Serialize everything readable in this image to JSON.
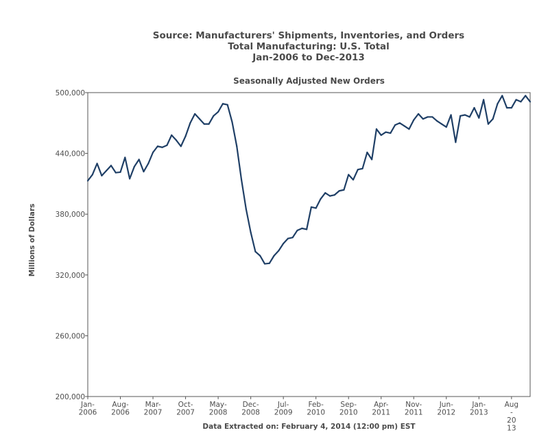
{
  "header": {
    "line1": "Source: Manufacturers' Shipments, Inventories, and Orders",
    "line2": "Total Manufacturing: U.S. Total",
    "line3": "Jan-2006 to Dec-2013"
  },
  "footer": "Data Extracted on: February 4, 2014 (12:00 pm) EST",
  "colors": {
    "line": "#1f3f66",
    "axis": "#555555"
  },
  "chart_data": {
    "type": "line",
    "title": "Seasonally Adjusted New Orders",
    "xlabel": "",
    "ylabel": "Millions of Dollars",
    "ylim": [
      200000,
      500000
    ],
    "grid": false,
    "yticks": [
      "200,000",
      "260,000",
      "320,000",
      "380,000",
      "440,000",
      "500,000"
    ],
    "xticks": [
      {
        "index": 0,
        "lines": [
          "Jan-",
          "2006"
        ]
      },
      {
        "index": 7,
        "lines": [
          "Aug-",
          "2006"
        ]
      },
      {
        "index": 14,
        "lines": [
          "Mar-",
          "2007"
        ]
      },
      {
        "index": 21,
        "lines": [
          "Oct-",
          "2007"
        ]
      },
      {
        "index": 28,
        "lines": [
          "May-",
          "2008"
        ]
      },
      {
        "index": 35,
        "lines": [
          "Dec-",
          "2008"
        ]
      },
      {
        "index": 42,
        "lines": [
          "Jul-",
          "2009"
        ]
      },
      {
        "index": 49,
        "lines": [
          "Feb-",
          "2010"
        ]
      },
      {
        "index": 56,
        "lines": [
          "Sep-",
          "2010"
        ]
      },
      {
        "index": 63,
        "lines": [
          "Apr-",
          "2011"
        ]
      },
      {
        "index": 70,
        "lines": [
          "Nov-",
          "2011"
        ]
      },
      {
        "index": 77,
        "lines": [
          "Jun-",
          "2012"
        ]
      },
      {
        "index": 84,
        "lines": [
          "Jan-",
          "2013"
        ]
      },
      {
        "index": 91,
        "lines": [
          "Aug",
          "-",
          "20",
          "13"
        ]
      }
    ],
    "x": [
      "Jan-2006",
      "Feb-2006",
      "Mar-2006",
      "Apr-2006",
      "May-2006",
      "Jun-2006",
      "Jul-2006",
      "Aug-2006",
      "Sep-2006",
      "Oct-2006",
      "Nov-2006",
      "Dec-2006",
      "Jan-2007",
      "Feb-2007",
      "Mar-2007",
      "Apr-2007",
      "May-2007",
      "Jun-2007",
      "Jul-2007",
      "Aug-2007",
      "Sep-2007",
      "Oct-2007",
      "Nov-2007",
      "Dec-2007",
      "Jan-2008",
      "Feb-2008",
      "Mar-2008",
      "Apr-2008",
      "May-2008",
      "Jun-2008",
      "Jul-2008",
      "Aug-2008",
      "Sep-2008",
      "Oct-2008",
      "Nov-2008",
      "Dec-2008",
      "Jan-2009",
      "Feb-2009",
      "Mar-2009",
      "Apr-2009",
      "May-2009",
      "Jun-2009",
      "Jul-2009",
      "Aug-2009",
      "Sep-2009",
      "Oct-2009",
      "Nov-2009",
      "Dec-2009",
      "Jan-2010",
      "Feb-2010",
      "Mar-2010",
      "Apr-2010",
      "May-2010",
      "Jun-2010",
      "Jul-2010",
      "Aug-2010",
      "Sep-2010",
      "Oct-2010",
      "Nov-2010",
      "Dec-2010",
      "Jan-2011",
      "Feb-2011",
      "Mar-2011",
      "Apr-2011",
      "May-2011",
      "Jun-2011",
      "Jul-2011",
      "Aug-2011",
      "Sep-2011",
      "Oct-2011",
      "Nov-2011",
      "Dec-2011",
      "Jan-2012",
      "Feb-2012",
      "Mar-2012",
      "Apr-2012",
      "May-2012",
      "Jun-2012",
      "Jul-2012",
      "Aug-2012",
      "Sep-2012",
      "Oct-2012",
      "Nov-2012",
      "Dec-2012",
      "Jan-2013",
      "Feb-2013",
      "Mar-2013",
      "Apr-2013",
      "May-2013",
      "Jun-2013",
      "Jul-2013",
      "Aug-2013",
      "Sep-2013",
      "Oct-2013",
      "Nov-2013",
      "Dec-2013"
    ],
    "series": [
      {
        "values": [
          413000,
          419000,
          430000,
          418000,
          423000,
          428000,
          421000,
          421500,
          436000,
          415000,
          427000,
          434000,
          422000,
          430000,
          441000,
          447000,
          446000,
          448000,
          458000,
          453000,
          447000,
          457000,
          470000,
          479000,
          474000,
          469000,
          469000,
          477000,
          481000,
          489000,
          488000,
          471000,
          447000,
          414000,
          385000,
          362000,
          343000,
          339000,
          331000,
          331500,
          339000,
          344000,
          351000,
          356000,
          357000,
          364000,
          366000,
          365000,
          387000,
          386000,
          395000,
          401000,
          398000,
          399000,
          403000,
          404000,
          419000,
          414000,
          424000,
          425000,
          441000,
          434000,
          464000,
          458000,
          461000,
          460000,
          468000,
          470000,
          467000,
          464000,
          473000,
          479000,
          474000,
          476000,
          476000,
          472000,
          469000,
          466000,
          478000,
          451000,
          477000,
          478000,
          476000,
          485000,
          475000,
          493000,
          469000,
          474000,
          489000,
          497000,
          485000,
          485000,
          493000,
          491000,
          497000,
          491000
        ]
      }
    ]
  }
}
